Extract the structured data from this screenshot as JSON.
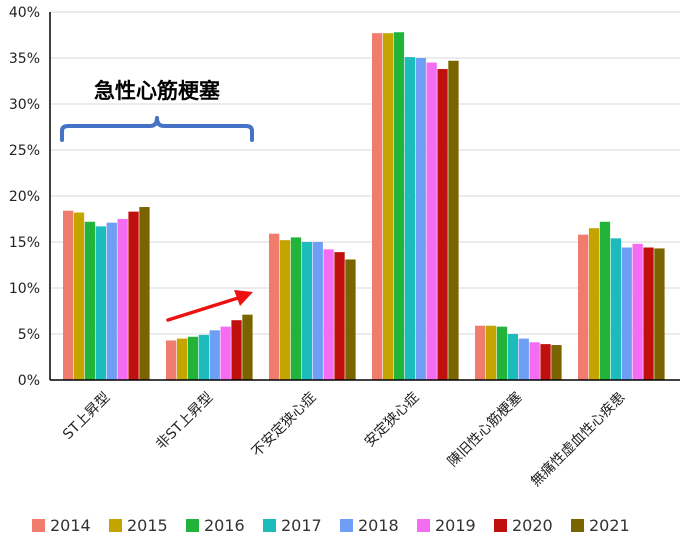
{
  "chart_data": {
    "type": "bar",
    "categories": [
      "ST上昇型",
      "非ST上昇型",
      "不安定狭心症",
      "安定狭心症",
      "陳旧性心筋梗塞",
      "無痛性虚血性心疾患"
    ],
    "y_tick_labels": [
      "0%",
      "5%",
      "10%",
      "15%",
      "20%",
      "25%",
      "30%",
      "35%",
      "40%"
    ],
    "ylim": [
      0,
      40
    ],
    "grid": true,
    "legend_position": "bottom",
    "series": [
      {
        "name": "2014",
        "color": "#f07c6e",
        "values": [
          18.4,
          4.3,
          15.9,
          37.7,
          5.9,
          15.8
        ]
      },
      {
        "name": "2015",
        "color": "#c4a500",
        "values": [
          18.2,
          4.5,
          15.2,
          37.7,
          5.9,
          16.5
        ]
      },
      {
        "name": "2016",
        "color": "#22b33a",
        "values": [
          17.2,
          4.7,
          15.5,
          37.8,
          5.8,
          17.2
        ]
      },
      {
        "name": "2017",
        "color": "#1cbcbc",
        "values": [
          16.7,
          4.9,
          15.0,
          35.1,
          5.0,
          15.4
        ]
      },
      {
        "name": "2018",
        "color": "#6e9ff5",
        "values": [
          17.1,
          5.4,
          15.0,
          35.0,
          4.5,
          14.4
        ]
      },
      {
        "name": "2019",
        "color": "#f36cf2",
        "values": [
          17.5,
          5.8,
          14.2,
          34.5,
          4.1,
          14.8
        ]
      },
      {
        "name": "2020",
        "color": "#c0100e",
        "values": [
          18.3,
          6.5,
          13.9,
          33.8,
          3.9,
          14.4
        ]
      },
      {
        "name": "2021",
        "color": "#7a6400",
        "values": [
          18.8,
          7.1,
          13.1,
          34.7,
          3.8,
          14.3
        ]
      }
    ],
    "annotations": {
      "bracket_label": "急性心筋梗塞",
      "bracket_color": "#4472c4",
      "arrow_color": "#ee1111"
    }
  }
}
